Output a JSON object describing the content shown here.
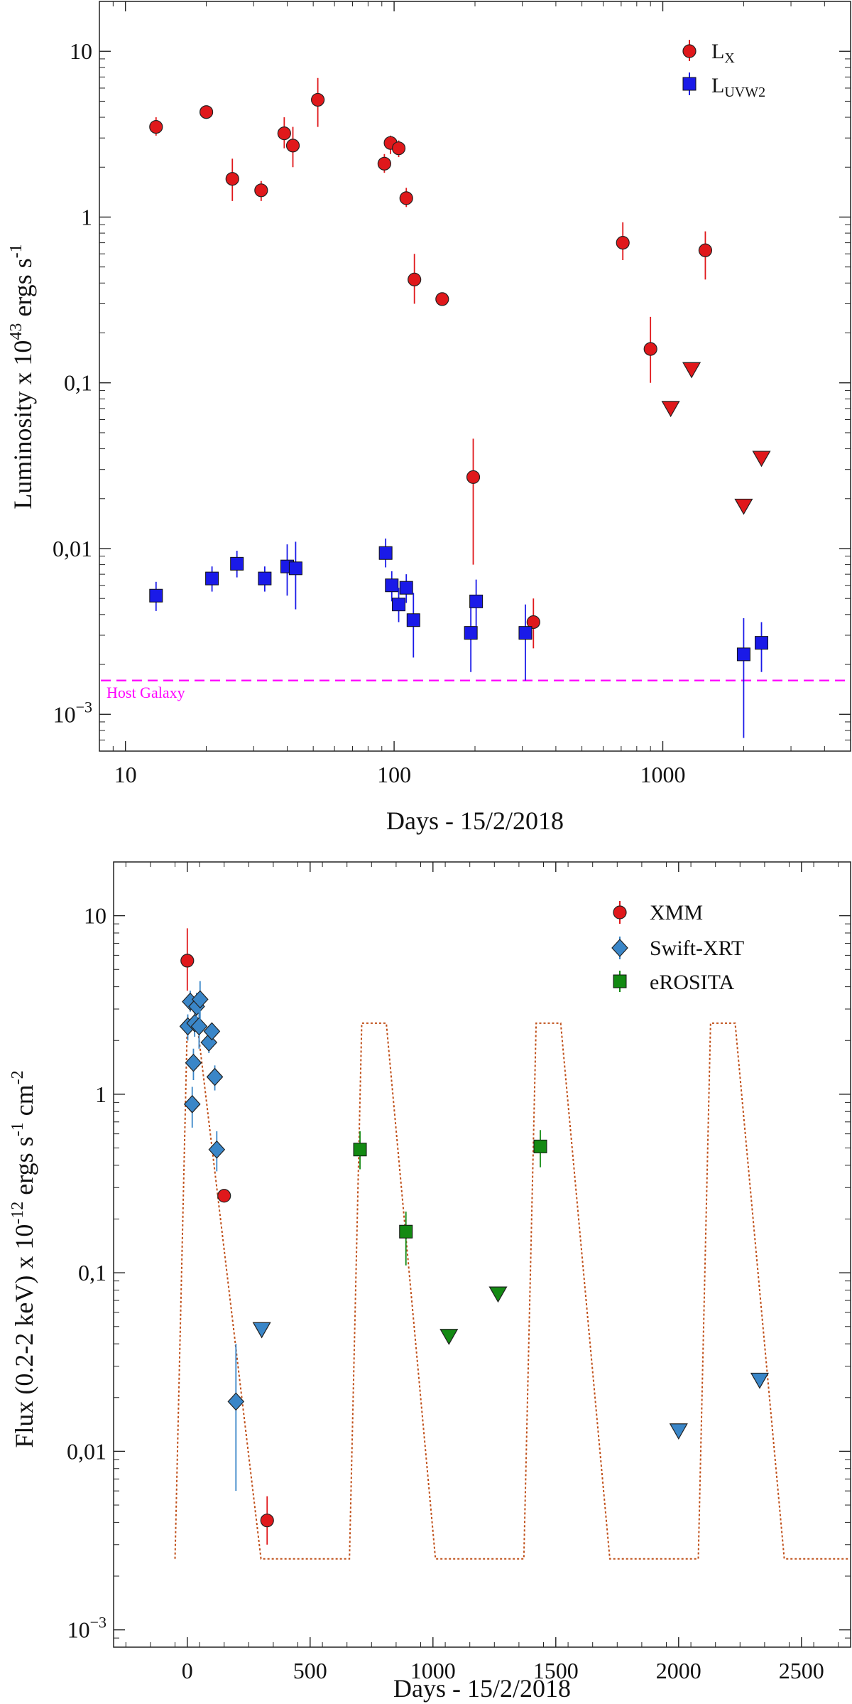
{
  "panels": {
    "top": {
      "xlabel": "Days - 15/2/2018",
      "ylabel": "Luminosity x 10",
      "ylabel_exp": "43",
      "ylabel_rest": " ergs s",
      "ylabel_exp2": "-1",
      "legend": [
        {
          "label_main": "L",
          "label_sub": "X",
          "marker": "circle",
          "color": "#e0181b"
        },
        {
          "label_main": "L",
          "label_sub": "UVW2",
          "marker": "square",
          "color": "#1a1ae8"
        }
      ],
      "annotation": "Host Galaxy"
    },
    "bottom": {
      "xlabel": "Days - 15/2/2018",
      "ylabel": "Flux (0.2-2 keV) x 10",
      "ylabel_exp": "-12",
      "ylabel_rest": " ergs s",
      "ylabel_exp2": "-1",
      "ylabel_rest2": " cm",
      "ylabel_exp3": "-2",
      "legend": [
        {
          "label": "XMM",
          "marker": "circle",
          "color": "#e0181b"
        },
        {
          "label": "Swift-XRT",
          "marker": "diamond",
          "color": "#3a86c8"
        },
        {
          "label": "eROSITA",
          "marker": "square",
          "color": "#138a13"
        }
      ]
    }
  },
  "chart_data": [
    {
      "type": "scatter",
      "xscale": "log",
      "yscale": "log",
      "xlim": [
        8,
        5000
      ],
      "ylim": [
        0.0006,
        20
      ],
      "xlabel": "Days - 15/2/2018",
      "ylabel": "Luminosity x 10^43 ergs s^-1",
      "xticks": [
        {
          "value": 10,
          "label": "10"
        },
        {
          "value": 100,
          "label": "100"
        },
        {
          "value": 1000,
          "label": "1000"
        }
      ],
      "yticks": [
        {
          "value": 0.001,
          "label": "10",
          "exp": "−3"
        },
        {
          "value": 0.01,
          "label": "0,01"
        },
        {
          "value": 0.1,
          "label": "0,1"
        },
        {
          "value": 1,
          "label": "1"
        },
        {
          "value": 10,
          "label": "10"
        }
      ],
      "hline": {
        "value": 0.0016,
        "label": "Host Galaxy",
        "color": "#ff00ff",
        "style": "dashed"
      },
      "legend_position": "top-right",
      "series": [
        {
          "name": "L_X",
          "marker": "circle",
          "color": "#e0181b",
          "points": [
            {
              "x": 13,
              "y": 3.5,
              "ylo": 3.1,
              "yhi": 4.0
            },
            {
              "x": 20,
              "y": 4.3,
              "ylo": 4.0,
              "yhi": 4.7
            },
            {
              "x": 25,
              "y": 1.7,
              "ylo": 1.25,
              "yhi": 2.25
            },
            {
              "x": 32,
              "y": 1.45,
              "ylo": 1.25,
              "yhi": 1.65
            },
            {
              "x": 39,
              "y": 3.2,
              "ylo": 2.6,
              "yhi": 4.0
            },
            {
              "x": 42,
              "y": 2.7,
              "ylo": 2.0,
              "yhi": 3.5
            },
            {
              "x": 52,
              "y": 5.1,
              "ylo": 3.5,
              "yhi": 6.9
            },
            {
              "x": 92,
              "y": 2.1,
              "ylo": 1.85,
              "yhi": 2.4
            },
            {
              "x": 97,
              "y": 2.8,
              "ylo": 2.4,
              "yhi": 3.1
            },
            {
              "x": 104,
              "y": 2.6,
              "ylo": 2.3,
              "yhi": 2.9
            },
            {
              "x": 111,
              "y": 1.3,
              "ylo": 1.15,
              "yhi": 1.5
            },
            {
              "x": 119,
              "y": 0.42,
              "ylo": 0.3,
              "yhi": 0.6
            },
            {
              "x": 151,
              "y": 0.32,
              "ylo": 0.3,
              "yhi": 0.34
            },
            {
              "x": 197,
              "y": 0.027,
              "ylo": 0.008,
              "yhi": 0.046
            },
            {
              "x": 330,
              "y": 0.0036,
              "ylo": 0.0025,
              "yhi": 0.005
            },
            {
              "x": 710,
              "y": 0.7,
              "ylo": 0.55,
              "yhi": 0.93
            },
            {
              "x": 900,
              "y": 0.16,
              "ylo": 0.1,
              "yhi": 0.25
            },
            {
              "x": 1440,
              "y": 0.63,
              "ylo": 0.42,
              "yhi": 0.82
            }
          ]
        },
        {
          "name": "L_X upper limits",
          "marker": "triangle-down",
          "color": "#e0181b",
          "legend": false,
          "points": [
            {
              "x": 1070,
              "y": 0.07
            },
            {
              "x": 1280,
              "y": 0.12
            },
            {
              "x": 2000,
              "y": 0.018
            },
            {
              "x": 2330,
              "y": 0.035
            }
          ]
        },
        {
          "name": "L_UVW2",
          "marker": "square",
          "color": "#1a1ae8",
          "points": [
            {
              "x": 13,
              "y": 0.0052,
              "ylo": 0.0042,
              "yhi": 0.0063
            },
            {
              "x": 21,
              "y": 0.0066,
              "ylo": 0.0055,
              "yhi": 0.0078
            },
            {
              "x": 26,
              "y": 0.0081,
              "ylo": 0.0067,
              "yhi": 0.0097
            },
            {
              "x": 33,
              "y": 0.0066,
              "ylo": 0.0055,
              "yhi": 0.0078
            },
            {
              "x": 40,
              "y": 0.0078,
              "ylo": 0.0052,
              "yhi": 0.0106
            },
            {
              "x": 43,
              "y": 0.0076,
              "ylo": 0.0043,
              "yhi": 0.011
            },
            {
              "x": 93,
              "y": 0.0094,
              "ylo": 0.0077,
              "yhi": 0.0115
            },
            {
              "x": 98,
              "y": 0.006,
              "ylo": 0.0048,
              "yhi": 0.0073
            },
            {
              "x": 104,
              "y": 0.0046,
              "ylo": 0.0036,
              "yhi": 0.0058
            },
            {
              "x": 111,
              "y": 0.0058,
              "ylo": 0.0047,
              "yhi": 0.007
            },
            {
              "x": 118,
              "y": 0.0037,
              "ylo": 0.0022,
              "yhi": 0.0054
            },
            {
              "x": 193,
              "y": 0.0031,
              "ylo": 0.0018,
              "yhi": 0.0046
            },
            {
              "x": 202,
              "y": 0.0048,
              "ylo": 0.0034,
              "yhi": 0.0065
            },
            {
              "x": 308,
              "y": 0.0031,
              "ylo": 0.0016,
              "yhi": 0.0046
            },
            {
              "x": 2000,
              "y": 0.0023,
              "ylo": 0.00072,
              "yhi": 0.0038
            },
            {
              "x": 2330,
              "y": 0.0027,
              "ylo": 0.0018,
              "yhi": 0.0036
            }
          ]
        }
      ]
    },
    {
      "type": "scatter",
      "xscale": "linear",
      "yscale": "log",
      "xlim": [
        -300,
        2700
      ],
      "ylim": [
        0.0008,
        20
      ],
      "xlabel": "Days - 15/2/2018",
      "ylabel": "Flux (0.2-2 keV) x 10^-12 ergs s^-1 cm^-2",
      "xticks": [
        {
          "value": 0,
          "label": "0"
        },
        {
          "value": 500,
          "label": "500"
        },
        {
          "value": 1000,
          "label": "1000"
        },
        {
          "value": 1500,
          "label": "1500"
        },
        {
          "value": 2000,
          "label": "2000"
        },
        {
          "value": 2500,
          "label": "2500"
        }
      ],
      "yticks": [
        {
          "value": 0.001,
          "label": "10",
          "exp": "−3"
        },
        {
          "value": 0.01,
          "label": "0,01"
        },
        {
          "value": 0.1,
          "label": "0,1"
        },
        {
          "value": 1,
          "label": "1"
        },
        {
          "value": 10,
          "label": "10"
        }
      ],
      "legend_position": "top-right",
      "model_curve": {
        "style": "dotted",
        "color": "#c0501a",
        "points": [
          [
            -50,
            0.0025
          ],
          [
            0,
            2.5
          ],
          [
            40,
            2.5
          ],
          [
            120,
            0.3
          ],
          [
            300,
            0.0025
          ],
          [
            660,
            0.0025
          ],
          [
            710,
            2.5
          ],
          [
            810,
            2.5
          ],
          [
            1010,
            0.0025
          ],
          [
            1370,
            0.0025
          ],
          [
            1420,
            2.5
          ],
          [
            1520,
            2.5
          ],
          [
            1720,
            0.0025
          ],
          [
            2080,
            0.0025
          ],
          [
            2130,
            2.5
          ],
          [
            2230,
            2.5
          ],
          [
            2430,
            0.0025
          ],
          [
            2700,
            0.0025
          ]
        ]
      },
      "series": [
        {
          "name": "XMM",
          "marker": "circle",
          "color": "#e0181b",
          "points": [
            {
              "x": 0,
              "y": 5.6,
              "ylo": 3.8,
              "yhi": 8.5
            },
            {
              "x": 150,
              "y": 0.27,
              "ylo": 0.25,
              "yhi": 0.29
            },
            {
              "x": 325,
              "y": 0.0041,
              "ylo": 0.003,
              "yhi": 0.0056
            }
          ]
        },
        {
          "name": "Swift-XRT",
          "marker": "diamond",
          "color": "#3a86c8",
          "points": [
            {
              "x": 2,
              "y": 2.4,
              "ylo": 2.0,
              "yhi": 2.8
            },
            {
              "x": 12,
              "y": 3.3,
              "ylo": 2.9,
              "yhi": 3.8
            },
            {
              "x": 20,
              "y": 0.88,
              "ylo": 0.65,
              "yhi": 1.1
            },
            {
              "x": 25,
              "y": 1.5,
              "ylo": 1.2,
              "yhi": 1.8
            },
            {
              "x": 30,
              "y": 2.5,
              "ylo": 2.1,
              "yhi": 2.9
            },
            {
              "x": 38,
              "y": 3.1,
              "ylo": 2.5,
              "yhi": 3.7
            },
            {
              "x": 48,
              "y": 2.4,
              "ylo": 1.8,
              "yhi": 3.0
            },
            {
              "x": 52,
              "y": 3.4,
              "ylo": 2.6,
              "yhi": 4.3
            },
            {
              "x": 88,
              "y": 1.95,
              "ylo": 1.7,
              "yhi": 2.2
            },
            {
              "x": 100,
              "y": 2.25,
              "ylo": 2.0,
              "yhi": 2.5
            },
            {
              "x": 112,
              "y": 1.25,
              "ylo": 1.05,
              "yhi": 1.45
            },
            {
              "x": 120,
              "y": 0.49,
              "ylo": 0.37,
              "yhi": 0.62
            },
            {
              "x": 198,
              "y": 0.019,
              "ylo": 0.006,
              "yhi": 0.04
            }
          ]
        },
        {
          "name": "Swift-XRT upper limits",
          "marker": "triangle-down",
          "color": "#3a86c8",
          "legend": false,
          "points": [
            {
              "x": 303,
              "y": 0.048
            },
            {
              "x": 2000,
              "y": 0.013
            },
            {
              "x": 2330,
              "y": 0.025
            }
          ]
        },
        {
          "name": "eROSITA",
          "marker": "square",
          "color": "#138a13",
          "points": [
            {
              "x": 703,
              "y": 0.49,
              "ylo": 0.38,
              "yhi": 0.62
            },
            {
              "x": 890,
              "y": 0.17,
              "ylo": 0.11,
              "yhi": 0.22
            },
            {
              "x": 1437,
              "y": 0.51,
              "ylo": 0.39,
              "yhi": 0.63
            }
          ]
        },
        {
          "name": "eROSITA upper limits",
          "marker": "triangle-down",
          "color": "#138a13",
          "legend": false,
          "points": [
            {
              "x": 1065,
              "y": 0.044
            },
            {
              "x": 1265,
              "y": 0.076
            }
          ]
        }
      ]
    }
  ]
}
